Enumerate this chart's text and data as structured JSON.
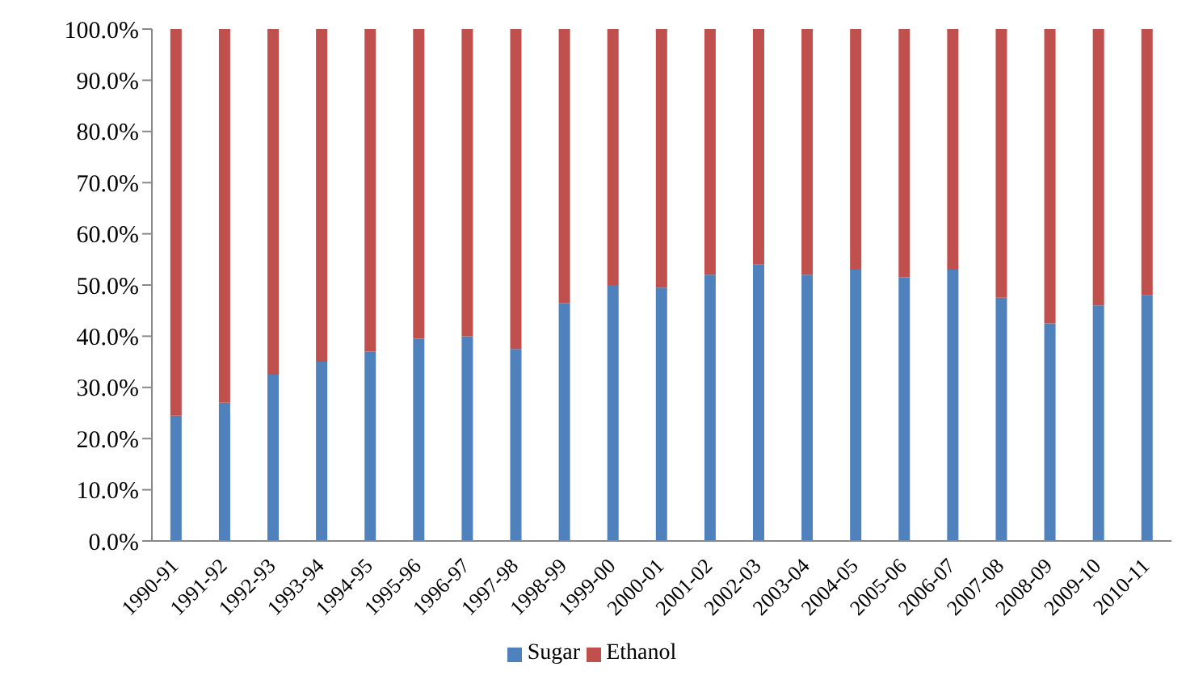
{
  "chart_data": {
    "type": "bar",
    "stacked": true,
    "categories": [
      "1990-91",
      "1991-92",
      "1992-93",
      "1993-94",
      "1994-95",
      "1995-96",
      "1996-97",
      "1997-98",
      "1998-99",
      "1999-00",
      "2000-01",
      "2001-02",
      "2002-03",
      "2003-04",
      "2004-05",
      "2005-06",
      "2006-07",
      "2007-08",
      "2008-09",
      "2009-10",
      "2010-11"
    ],
    "series": [
      {
        "name": "Sugar",
        "color": "#4f81bd",
        "values": [
          24.5,
          27,
          32.5,
          35,
          37,
          39.5,
          40,
          37.5,
          46.5,
          50,
          49.5,
          52,
          54,
          52,
          53,
          51.5,
          53,
          47.5,
          42.5,
          46,
          48
        ]
      },
      {
        "name": "Ethanol",
        "color": "#c0504d",
        "values": [
          75.5,
          73,
          67.5,
          65,
          63,
          60.5,
          60,
          62.5,
          53.5,
          50,
          50.5,
          48,
          46,
          48,
          47,
          48.5,
          47,
          52.5,
          57.5,
          54,
          52
        ]
      }
    ],
    "ylim": [
      0,
      100
    ],
    "yticks": [
      {
        "value": 0,
        "label": "0.0%"
      },
      {
        "value": 10,
        "label": "10.0%"
      },
      {
        "value": 20,
        "label": "20.0%"
      },
      {
        "value": 30,
        "label": "30.0%"
      },
      {
        "value": 40,
        "label": "40.0%"
      },
      {
        "value": 50,
        "label": "50.0%"
      },
      {
        "value": 60,
        "label": "60.0%"
      },
      {
        "value": 70,
        "label": "70.0%"
      },
      {
        "value": 80,
        "label": "80.0%"
      },
      {
        "value": 90,
        "label": "90.0%"
      },
      {
        "value": 100,
        "label": "100.0%"
      }
    ],
    "grid": false,
    "legend": "bottom"
  }
}
